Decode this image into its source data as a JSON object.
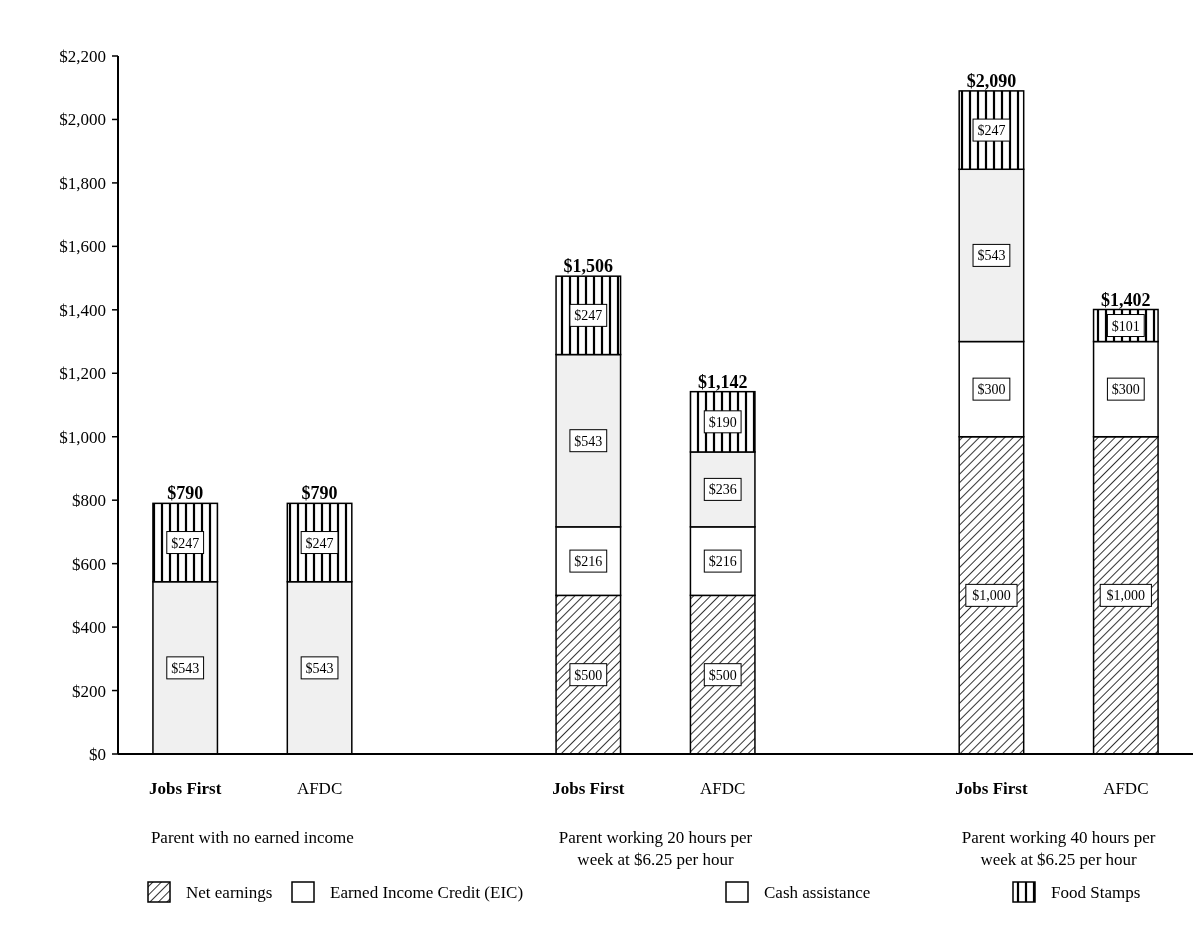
{
  "chart_data": {
    "type": "bar",
    "stacked": true,
    "categories": [
      "Jobs First",
      "AFDC",
      null,
      "Jobs First",
      "AFDC",
      null,
      "Jobs First",
      "AFDC"
    ],
    "series": [
      {
        "name": "Net earnings",
        "color": "#000000",
        "values": [
          0,
          0,
          null,
          500,
          500,
          null,
          1000,
          1000
        ],
        "value_labels": [
          null,
          null,
          null,
          "$500",
          "$500",
          null,
          "$1,000",
          "$1,000"
        ]
      },
      {
        "name": "Earned Income Credit (EIC)",
        "color": "#ffffff",
        "values": [
          0,
          0,
          null,
          216,
          216,
          null,
          300,
          300
        ],
        "value_labels": [
          null,
          null,
          null,
          "$216",
          "$216",
          null,
          "$300",
          "$300"
        ]
      },
      {
        "name": "Cash assistance",
        "color": "#f0f0f0",
        "values": [
          543,
          543,
          null,
          543,
          236,
          null,
          543,
          0
        ],
        "value_labels": [
          "$543",
          "$543",
          null,
          "$543",
          "$236",
          null,
          "$543",
          null
        ]
      },
      {
        "name": "Food Stamps",
        "color": "#000000",
        "values": [
          247,
          247,
          null,
          247,
          190,
          null,
          247,
          101
        ],
        "value_labels": [
          "$247",
          "$247",
          null,
          "$247",
          "$190",
          null,
          "$247",
          "$101"
        ]
      }
    ],
    "totals": [
      "$790",
      "$790",
      null,
      "$1,506",
      "$1,142",
      null,
      "$2,090",
      "$1,402"
    ],
    "ylim": [
      0,
      2200
    ],
    "yticks": [
      {
        "value": 0,
        "label": "$0"
      },
      {
        "value": 200,
        "label": "$200"
      },
      {
        "value": 400,
        "label": "$400"
      },
      {
        "value": 600,
        "label": "$600"
      },
      {
        "value": 800,
        "label": "$800"
      },
      {
        "value": 1000,
        "label": "$1,000"
      },
      {
        "value": 1200,
        "label": "$1,200"
      },
      {
        "value": 1400,
        "label": "$1,400"
      },
      {
        "value": 1600,
        "label": "$1,600"
      },
      {
        "value": 1800,
        "label": "$1,800"
      },
      {
        "value": 2000,
        "label": "$2,000"
      },
      {
        "value": 2200,
        "label": "$2,200"
      }
    ],
    "annotations": [
      "Parent with no earned income",
      "Parent working 20 hours per week at $6.25 per hour",
      "Parent working 40 hours per week at $6.25 per hour"
    ],
    "grid": false,
    "legend": "bottom"
  }
}
